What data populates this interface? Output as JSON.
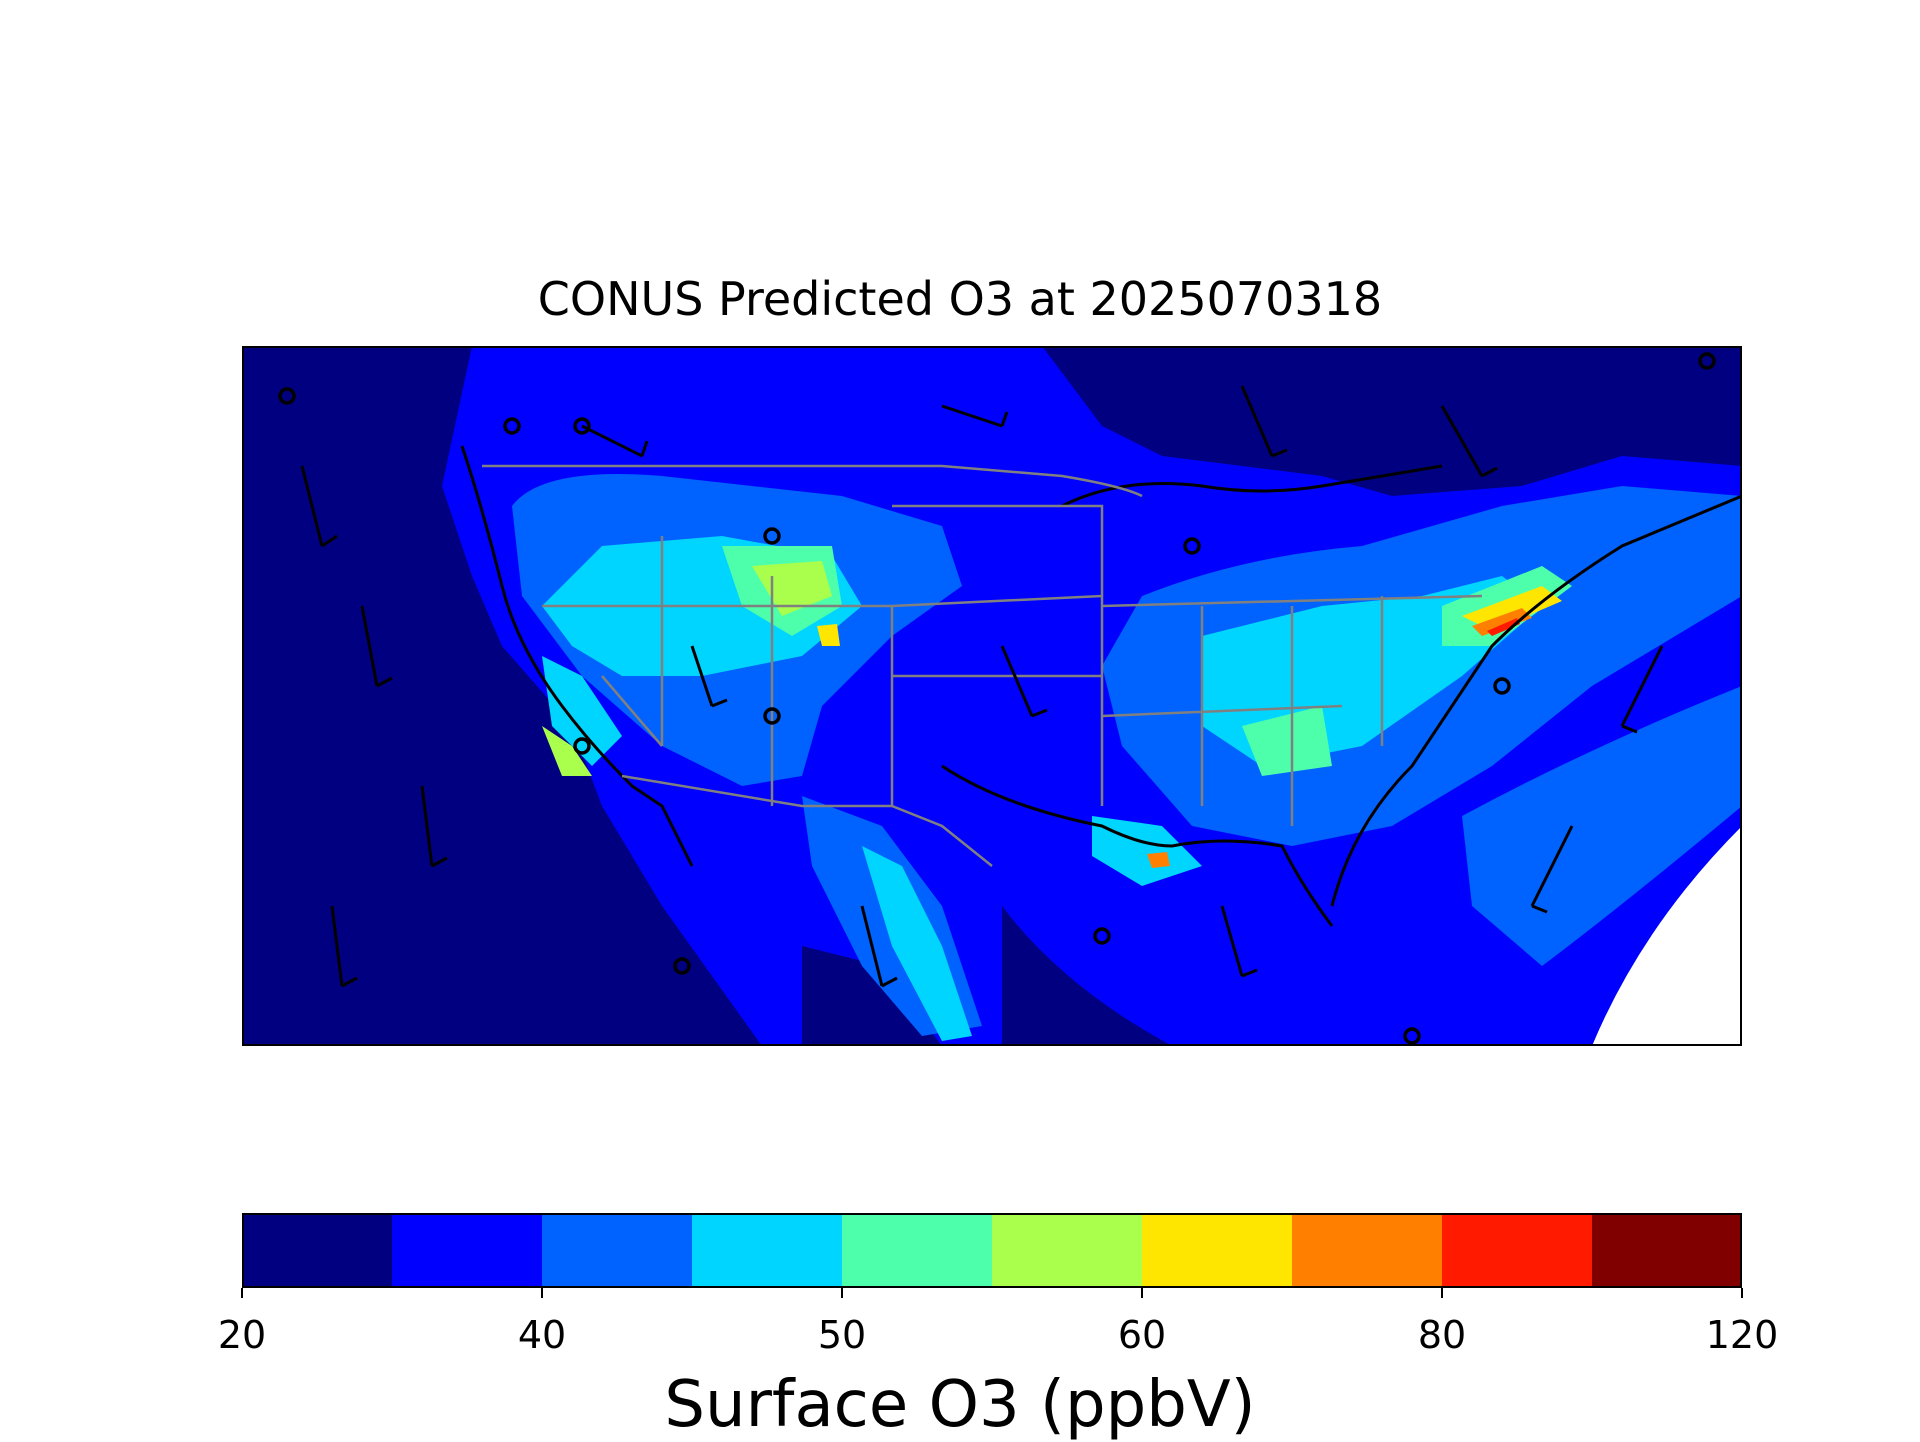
{
  "title": "CONUS Predicted O3 at 2025070318",
  "colorbar": {
    "label": "Surface O3 (ppbV)",
    "bins": [
      {
        "range": "20-25",
        "color": "#000080"
      },
      {
        "range": "25-40",
        "color": "#0000ff"
      },
      {
        "range": "40-45",
        "color": "#0062ff"
      },
      {
        "range": "45-50",
        "color": "#00d5ff"
      },
      {
        "range": "50-55",
        "color": "#4dffaa"
      },
      {
        "range": "55-60",
        "color": "#aaff4d"
      },
      {
        "range": "60-65",
        "color": "#ffe600"
      },
      {
        "range": "65-80",
        "color": "#ff8000"
      },
      {
        "range": "80-90",
        "color": "#ff1a00"
      },
      {
        "range": "90-120",
        "color": "#800000"
      }
    ],
    "tick_labels": [
      {
        "label": "20"
      },
      {
        "label": "40"
      },
      {
        "label": "50"
      },
      {
        "label": "60"
      },
      {
        "label": "80"
      },
      {
        "label": "120"
      }
    ]
  },
  "map": {
    "field": "Surface O3",
    "overlays": [
      "state-boundaries",
      "coastlines",
      "wind-barbs",
      "calm-wind-circles"
    ],
    "colors": {
      "state_lines": "#808080",
      "coastlines": "#000000",
      "barbs": "#000000"
    }
  }
}
